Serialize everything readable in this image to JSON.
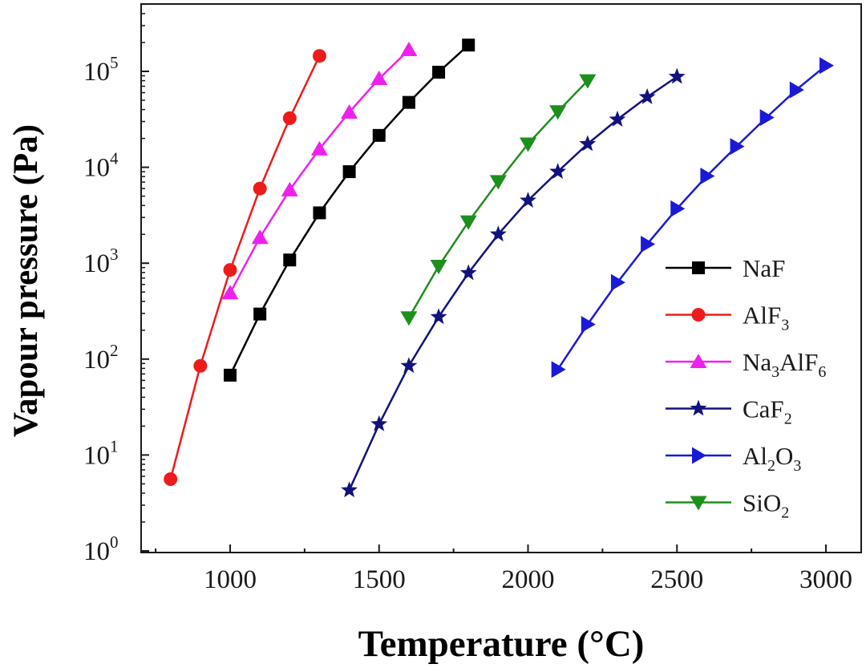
{
  "chart_data": {
    "type": "line",
    "xlabel": "Temperature (°C)",
    "ylabel": "Vapour pressure (Pa)",
    "xlim": [
      700,
      3120
    ],
    "ylim": [
      0,
      5.5
    ],
    "yscale": "log",
    "x_ticks": [
      1000,
      1500,
      2000,
      2500,
      3000
    ],
    "y_ticks": [
      {
        "base": "10",
        "exp": "0",
        "value": 0
      },
      {
        "base": "10",
        "exp": "1",
        "value": 1
      },
      {
        "base": "10",
        "exp": "2",
        "value": 2
      },
      {
        "base": "10",
        "exp": "3",
        "value": 3
      },
      {
        "base": "10",
        "exp": "4",
        "value": 4
      },
      {
        "base": "10",
        "exp": "5",
        "value": 5
      }
    ],
    "legend_position": "right",
    "series": [
      {
        "name": "NaF",
        "label_parts": [
          {
            "t": "NaF",
            "sub": false
          }
        ],
        "marker": "square",
        "color": "#000000",
        "x": [
          1000,
          1100,
          1200,
          1300,
          1400,
          1500,
          1600,
          1700,
          1800
        ],
        "y": [
          68,
          295,
          1080,
          3350,
          9000,
          21500,
          47500,
          98000,
          188000
        ]
      },
      {
        "name": "AlF3",
        "label_parts": [
          {
            "t": "AlF",
            "sub": false
          },
          {
            "t": "3",
            "sub": true
          }
        ],
        "marker": "circle",
        "color": "#ee1b1b",
        "x": [
          800,
          900,
          1000,
          1100,
          1200,
          1300
        ],
        "y": [
          5.6,
          85,
          850,
          6000,
          32500,
          145000
        ]
      },
      {
        "name": "Na3AlF6",
        "label_parts": [
          {
            "t": "Na",
            "sub": false
          },
          {
            "t": "3",
            "sub": true
          },
          {
            "t": "AlF",
            "sub": false
          },
          {
            "t": "6",
            "sub": true
          }
        ],
        "marker": "triangle-up",
        "color": "#ee20ee",
        "x": [
          1000,
          1100,
          1200,
          1300,
          1400,
          1500,
          1600
        ],
        "y": [
          490,
          1850,
          5800,
          15500,
          37500,
          84000,
          168000
        ]
      },
      {
        "name": "CaF2",
        "label_parts": [
          {
            "t": "CaF",
            "sub": false
          },
          {
            "t": "2",
            "sub": true
          }
        ],
        "marker": "star",
        "color": "#12127e",
        "x": [
          1400,
          1500,
          1600,
          1700,
          1800,
          1900,
          2000,
          2100,
          2200,
          2300,
          2400,
          2500
        ],
        "y": [
          4.3,
          21,
          85,
          275,
          790,
          2000,
          4500,
          9000,
          17500,
          31500,
          54000,
          88000
        ]
      },
      {
        "name": "Al2O3",
        "label_parts": [
          {
            "t": "Al",
            "sub": false
          },
          {
            "t": "2",
            "sub": true
          },
          {
            "t": "O",
            "sub": false
          },
          {
            "t": "3",
            "sub": true
          }
        ],
        "marker": "triangle-right",
        "color": "#1a1ad6",
        "x": [
          2100,
          2200,
          2300,
          2400,
          2500,
          2600,
          2700,
          2800,
          2900,
          3000
        ],
        "y": [
          78,
          230,
          630,
          1580,
          3700,
          8100,
          16500,
          33000,
          64000,
          115000
        ]
      },
      {
        "name": "SiO2",
        "label_parts": [
          {
            "t": "SiO",
            "sub": false
          },
          {
            "t": "2",
            "sub": true
          }
        ],
        "marker": "triangle-down",
        "color": "#1d8f1d",
        "x": [
          1600,
          1700,
          1800,
          1900,
          2000,
          2100,
          2200
        ],
        "y": [
          270,
          930,
          2700,
          7100,
          17500,
          38000,
          80000
        ]
      }
    ]
  }
}
